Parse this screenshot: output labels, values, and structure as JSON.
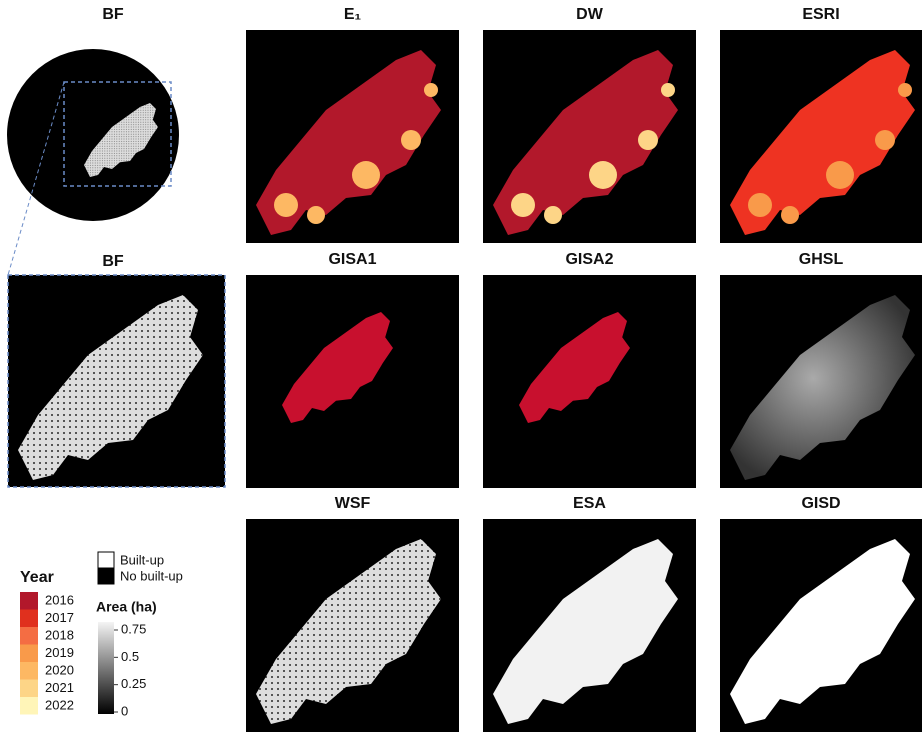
{
  "panels": {
    "circle_title": "BF",
    "zoom_title": "BF",
    "grid_titles": [
      "E₁",
      "DW",
      "ESRI",
      "GISA1",
      "GISA2",
      "GHSL",
      "WSF",
      "ESA",
      "GISD"
    ]
  },
  "legend": {
    "year_title": "Year",
    "years": [
      "2016",
      "2017",
      "2018",
      "2019",
      "2020",
      "2021",
      "2022"
    ],
    "year_colors": [
      "#b2182b",
      "#e0301e",
      "#f46d43",
      "#f99a4a",
      "#fdb863",
      "#fdd587",
      "#fff5b8"
    ],
    "builtup_labels": [
      "Built-up",
      "No built-up"
    ],
    "area_title": "Area (ha)",
    "area_range": [
      0,
      0.75
    ],
    "area_ticks": [
      0.75,
      0.5,
      0.25,
      0
    ]
  }
}
